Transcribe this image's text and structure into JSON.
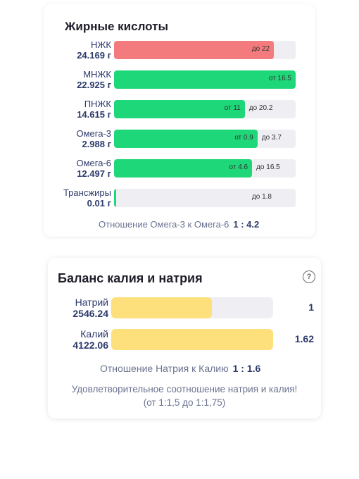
{
  "fatty_acids": {
    "title": "Жирные кислоты",
    "rows": [
      {
        "name": "НЖК",
        "value": "24.169 г",
        "color": "red",
        "fill": 0.88,
        "inner_text": "до 22",
        "outer_text": ""
      },
      {
        "name": "МНЖК",
        "value": "22.925 г",
        "color": "green",
        "fill": 1.0,
        "inner_text": "от 16.5",
        "outer_text": ""
      },
      {
        "name": "ПНЖК",
        "value": "14.615 г",
        "color": "green",
        "fill": 0.72,
        "inner_text": "от 11",
        "outer_text": "до 20.2"
      },
      {
        "name": "Омега-3",
        "value": "2.988 г",
        "color": "green",
        "fill": 0.79,
        "inner_text": "от 0.9",
        "outer_text": "до 3.7"
      },
      {
        "name": "Омега-6",
        "value": "12.497 г",
        "color": "green",
        "fill": 0.76,
        "inner_text": "от 4.6",
        "outer_text": "до 16.5"
      },
      {
        "name": "Трансжиры",
        "value": "0.01 г",
        "color": "green",
        "fill": 0.01,
        "inner_text": "",
        "outer_text": "до 1.8"
      }
    ],
    "ratio_label": "Отношение Омега-3 к Омега-6",
    "ratio_value": "1 : 4.2"
  },
  "sodium_potassium": {
    "title": "Баланс калия и натрия",
    "help_icon": "question-circle-icon",
    "rows": [
      {
        "name": "Натрий",
        "value": "2546.24",
        "fill": 0.62,
        "side": "1"
      },
      {
        "name": "Калий",
        "value": "4122.06",
        "fill": 1.0,
        "side": "1.62"
      }
    ],
    "ratio_label": "Отношение Натрия к Калию",
    "ratio_value": "1 : 1.6",
    "note_line1": "Удовлетворительное соотношение натрия и калия!",
    "note_line2": "(от 1:1,5 до 1:1,75)"
  },
  "colors": {
    "green": "#1ed778",
    "red": "#f47b7d",
    "yellow": "#fde07c",
    "text_dark": "#2c3a6b",
    "track": "#eeeef3"
  }
}
